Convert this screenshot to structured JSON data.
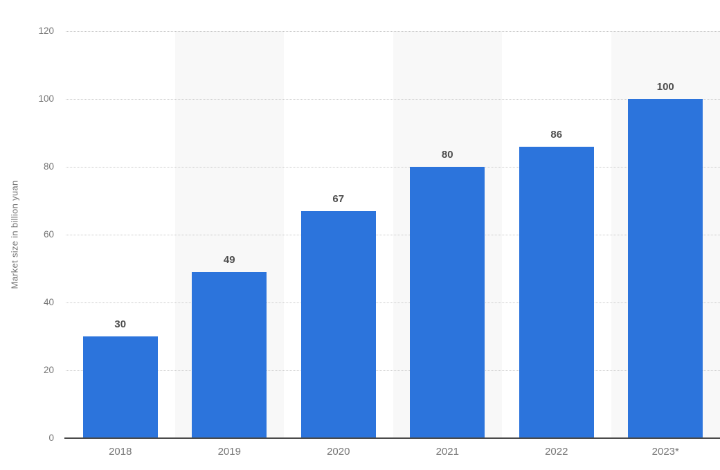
{
  "chart_data": {
    "type": "bar",
    "title": "",
    "xlabel": "",
    "ylabel": "Market size in billion yuan",
    "categories": [
      "2018",
      "2019",
      "2020",
      "2021",
      "2022",
      "2023*"
    ],
    "values": [
      30,
      49,
      67,
      80,
      86,
      100
    ],
    "value_labels": [
      "30",
      "49",
      "67",
      "80",
      "86",
      "100"
    ],
    "ylim": [
      0,
      120
    ],
    "yticks": [
      0,
      20,
      40,
      60,
      80,
      100,
      120
    ],
    "ytick_labels": [
      "0",
      "20",
      "40",
      "60",
      "80",
      "100",
      "120"
    ],
    "grid": "horizontal dotted gridlines",
    "legend_position": "none",
    "alternating_band_columns": [
      1,
      3,
      5
    ],
    "colors": {
      "bar": "#2c74dc",
      "band": "#f8f8f8",
      "axis_line": "#4a4a4a",
      "gridline": "#c9c9c9",
      "tick_text": "#757575",
      "value_label_text": "#4d4d4d",
      "background": "#ffffff"
    }
  }
}
